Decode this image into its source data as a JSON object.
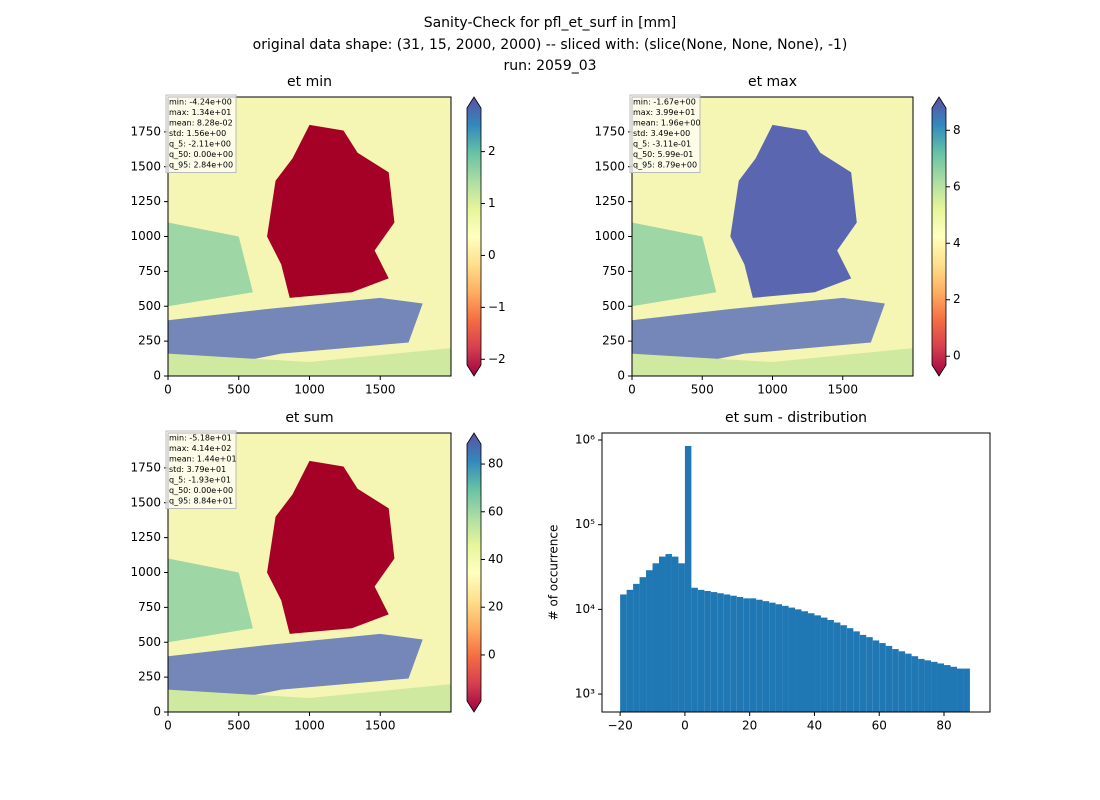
{
  "title": [
    "Sanity-Check for pfl_et_surf in [mm]",
    "original data shape: (31, 15, 2000, 2000) -- sliced with: (slice(None, None, None), -1)",
    "run: 2059_03"
  ],
  "chart_data": [
    {
      "type": "image",
      "title": "et min",
      "xlim": [
        0,
        2000
      ],
      "ylim": [
        0,
        2000
      ],
      "xticks": [
        0,
        500,
        1000,
        1500
      ],
      "yticks": [
        0,
        250,
        500,
        750,
        1000,
        1250,
        1500,
        1750
      ],
      "clim": [
        -2.11,
        2.84
      ],
      "cticks": [
        {
          "value": -2,
          "label": "−2"
        },
        {
          "value": -1,
          "label": "−1"
        },
        0,
        1,
        2
      ],
      "annotations": [
        "min: -4.24e+00",
        "max: 1.34e+01",
        "mean: 8.28e-02",
        "std: 1.56e+00",
        "q_5: -2.11e+00",
        "q_50: 0.00e+00",
        "q_95: 2.84e+00"
      ]
    },
    {
      "type": "image",
      "title": "et max",
      "xlim": [
        0,
        2000
      ],
      "ylim": [
        0,
        2000
      ],
      "xticks": [
        0,
        500,
        1000,
        1500
      ],
      "yticks": [
        0,
        250,
        500,
        750,
        1000,
        1250,
        1500,
        1750
      ],
      "clim": [
        -0.311,
        8.79
      ],
      "cticks": [
        0,
        2,
        4,
        6,
        8
      ],
      "annotations": [
        "min: -1.67e+00",
        "max: 3.99e+01",
        "mean: 1.96e+00",
        "std: 3.49e+00",
        "q_5: -3.11e-01",
        "q_50: 5.99e-01",
        "q_95: 8.79e+00"
      ]
    },
    {
      "type": "image",
      "title": "et sum",
      "xlim": [
        0,
        2000
      ],
      "ylim": [
        0,
        2000
      ],
      "xticks": [
        0,
        500,
        1000,
        1500
      ],
      "yticks": [
        0,
        250,
        500,
        750,
        1000,
        1250,
        1500,
        1750
      ],
      "clim": [
        -19.3,
        88.4
      ],
      "cticks": [
        0,
        20,
        40,
        60,
        80
      ],
      "annotations": [
        "min: -5.18e+01",
        "max: 4.14e+02",
        "mean: 1.44e+01",
        "std: 3.79e+01",
        "q_5: -1.93e+01",
        "q_50: 0.00e+00",
        "q_95: 8.84e+01"
      ]
    },
    {
      "type": "histogram",
      "title": "et sum - distribution",
      "ylabel": "# of occurrence",
      "color": "#1f77b4",
      "log_y": true,
      "xlim": [
        -25.6,
        94.2
      ],
      "ylim": [
        614,
        1210000
      ],
      "xticks": [
        {
          "value": -20,
          "label": "−20"
        },
        0,
        20,
        40,
        60,
        80
      ],
      "yticks": [
        {
          "value": 1000,
          "label": "10³"
        },
        {
          "value": 10000,
          "label": "10⁴"
        },
        {
          "value": 100000,
          "label": "10⁵"
        },
        {
          "value": 1000000,
          "label": "10⁶"
        }
      ],
      "bins": [
        -20,
        -18,
        -16,
        -14,
        -12,
        -10,
        -8,
        -6,
        -4,
        -2,
        0,
        2,
        4,
        6,
        8,
        10,
        12,
        14,
        16,
        18,
        20,
        22,
        24,
        26,
        28,
        30,
        32,
        34,
        36,
        38,
        40,
        42,
        44,
        46,
        48,
        50,
        52,
        54,
        56,
        58,
        60,
        62,
        64,
        66,
        68,
        70,
        72,
        74,
        76,
        78,
        80,
        82,
        84,
        86,
        88
      ],
      "counts": [
        15000,
        17000,
        20000,
        24000,
        29000,
        35000,
        42000,
        45000,
        42000,
        35000,
        850000,
        18000,
        17000,
        16500,
        16000,
        15500,
        15000,
        14500,
        14000,
        13500,
        13500,
        13000,
        12500,
        12000,
        11500,
        11000,
        10500,
        10000,
        9500,
        9000,
        8500,
        8000,
        7500,
        7000,
        6500,
        6000,
        5500,
        5000,
        4700,
        4300,
        4000,
        3700,
        3400,
        3200,
        3000,
        2800,
        2600,
        2500,
        2400,
        2300,
        2200,
        2100,
        2000,
        2000
      ]
    }
  ]
}
